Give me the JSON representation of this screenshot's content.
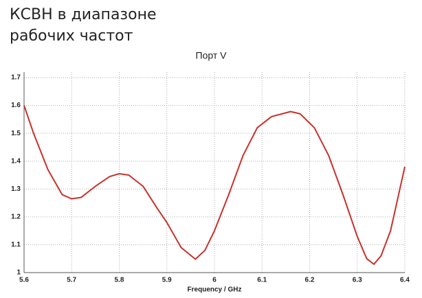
{
  "chart_data": {
    "type": "line",
    "title": "КСВН в диапазоне рабочих частот",
    "subtitle": "Порт V",
    "x_label": "Frequency / GHz",
    "x": [
      5.6,
      5.62,
      5.65,
      5.68,
      5.7,
      5.72,
      5.75,
      5.78,
      5.8,
      5.82,
      5.85,
      5.88,
      5.9,
      5.93,
      5.96,
      5.98,
      6.0,
      6.03,
      6.06,
      6.09,
      6.12,
      6.16,
      6.18,
      6.21,
      6.24,
      6.27,
      6.3,
      6.32,
      6.335,
      6.35,
      6.37,
      6.4
    ],
    "series": [
      {
        "color": "#c8302a",
        "values": [
          1.6,
          1.5,
          1.37,
          1.28,
          1.265,
          1.27,
          1.31,
          1.345,
          1.355,
          1.35,
          1.31,
          1.23,
          1.18,
          1.09,
          1.048,
          1.08,
          1.15,
          1.28,
          1.42,
          1.52,
          1.56,
          1.578,
          1.57,
          1.52,
          1.42,
          1.28,
          1.13,
          1.05,
          1.03,
          1.06,
          1.15,
          1.38
        ]
      }
    ],
    "xlim": [
      5.6,
      6.4
    ],
    "xticks": [
      5.6,
      5.7,
      5.8,
      5.9,
      6,
      6.1,
      6.2,
      6.3,
      6.4
    ],
    "ylim": [
      1,
      1.7
    ],
    "yticks": [
      1,
      1.1,
      1.2,
      1.3,
      1.4,
      1.5,
      1.6,
      1.7
    ],
    "grid": true
  }
}
